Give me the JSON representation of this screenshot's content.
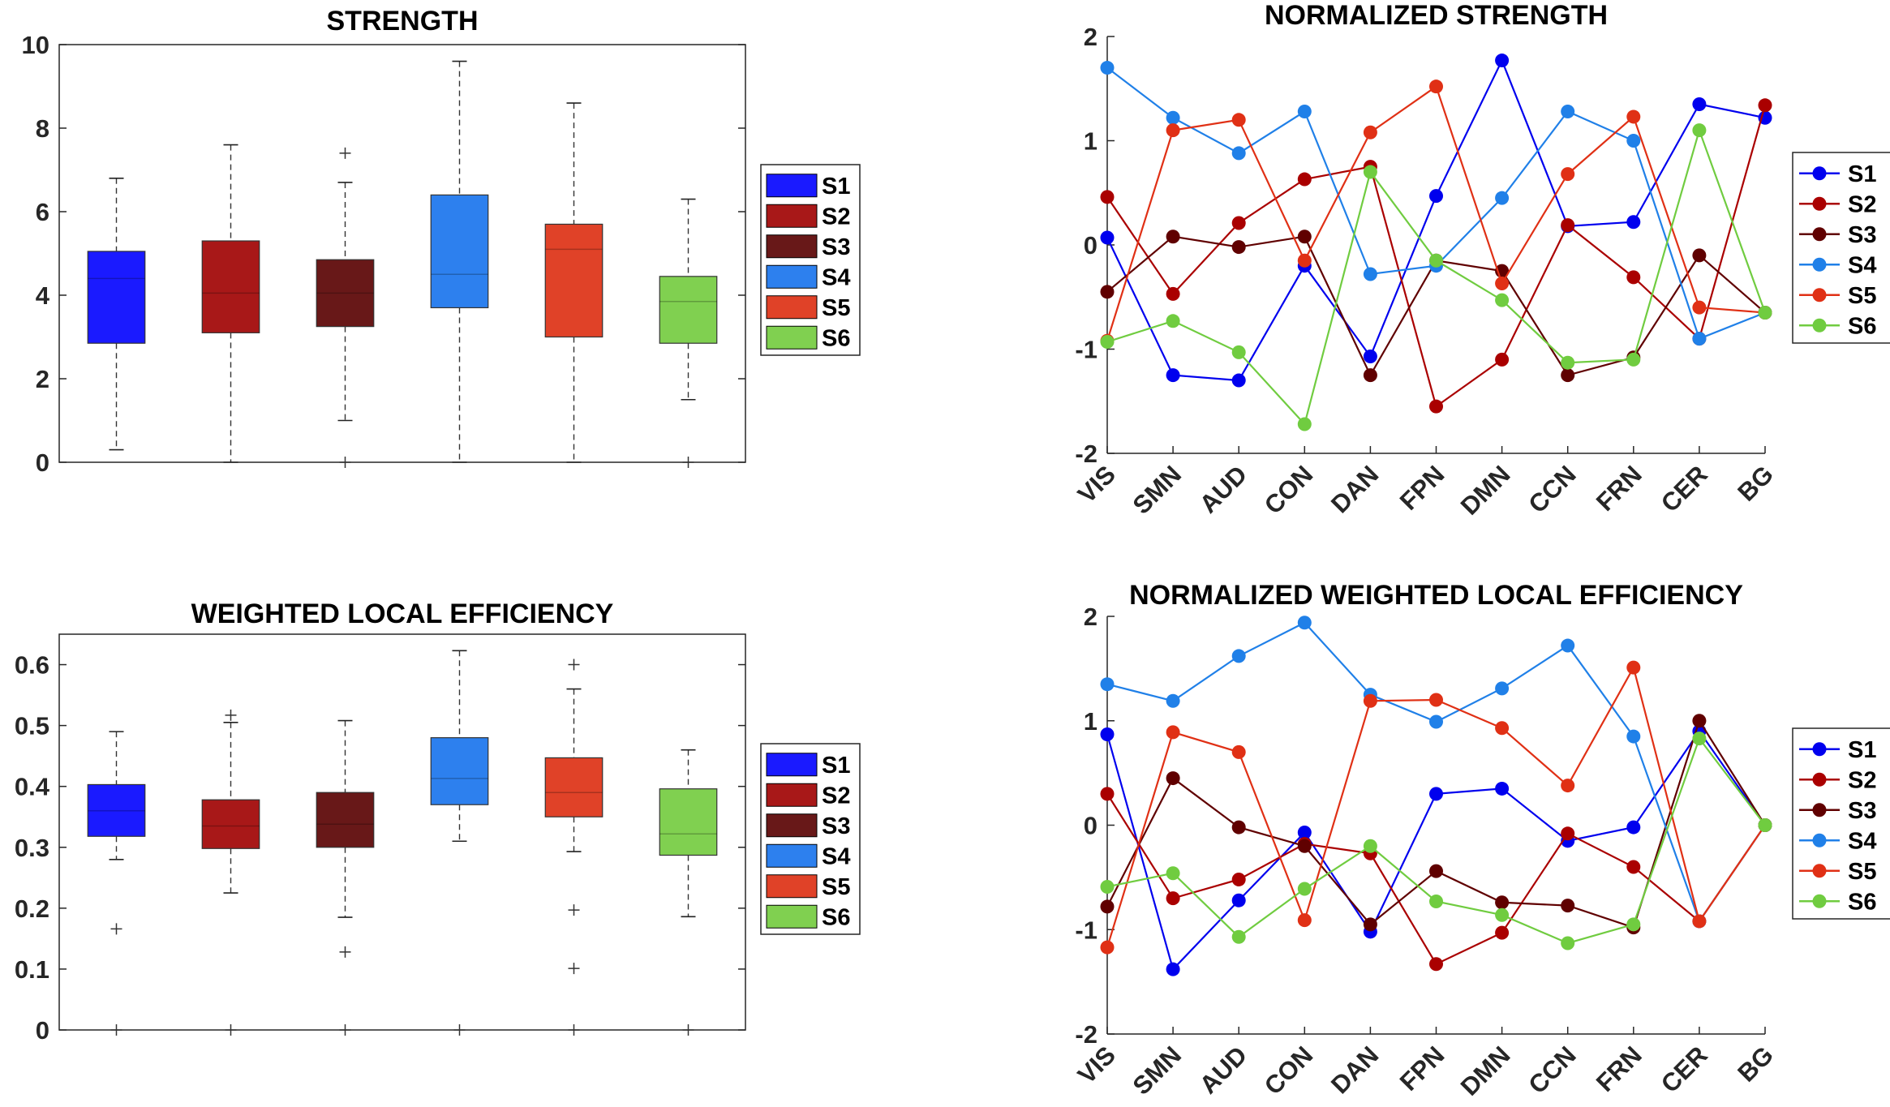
{
  "chart_data": [
    {
      "type": "box",
      "title": "STRENGTH",
      "ylim": [
        0,
        10
      ],
      "yticks": [
        "0",
        "2",
        "4",
        "6",
        "8",
        "10"
      ],
      "grid": false,
      "legend": "right",
      "series": [
        {
          "name": "S1",
          "color": "#1a1aff",
          "whisker_low": 0.3,
          "q1": 2.85,
          "median": 4.4,
          "q3": 5.05,
          "whisker_high": 6.8,
          "outliers": []
        },
        {
          "name": "S2",
          "color": "#a81818",
          "whisker_low": 0.0,
          "q1": 3.1,
          "median": 4.05,
          "q3": 5.3,
          "whisker_high": 7.6,
          "outliers": []
        },
        {
          "name": "S3",
          "color": "#681818",
          "whisker_low": 1.0,
          "q1": 3.25,
          "median": 4.05,
          "q3": 4.85,
          "whisker_high": 6.7,
          "outliers": [
            7.4,
            0.0
          ]
        },
        {
          "name": "S4",
          "color": "#2d80ee",
          "whisker_low": 0.0,
          "q1": 3.7,
          "median": 4.5,
          "q3": 6.4,
          "whisker_high": 9.6,
          "outliers": []
        },
        {
          "name": "S5",
          "color": "#e04228",
          "whisker_low": 0.0,
          "q1": 3.0,
          "median": 5.1,
          "q3": 5.7,
          "whisker_high": 8.6,
          "outliers": []
        },
        {
          "name": "S6",
          "color": "#80d050",
          "whisker_low": 1.5,
          "q1": 2.85,
          "median": 3.85,
          "q3": 4.45,
          "whisker_high": 6.3,
          "outliers": [
            0.0
          ]
        }
      ]
    },
    {
      "type": "line",
      "title": "NORMALIZED STRENGTH",
      "categories": [
        "VIS",
        "SMN",
        "AUD",
        "CON",
        "DAN",
        "FPN",
        "DMN",
        "CCN",
        "FRN",
        "CER",
        "BG"
      ],
      "ylim": [
        -2,
        2
      ],
      "yticks": [
        "-2",
        "-1",
        "0",
        "1",
        "2"
      ],
      "grid": false,
      "legend": "right",
      "series": [
        {
          "name": "S1",
          "color": "#0000ee",
          "values": [
            0.07,
            -1.25,
            -1.3,
            -0.2,
            -1.07,
            0.47,
            1.77,
            0.18,
            0.22,
            1.35,
            1.22
          ]
        },
        {
          "name": "S2",
          "color": "#aa0000",
          "values": [
            0.46,
            -0.47,
            0.21,
            0.63,
            0.75,
            -1.55,
            -1.1,
            0.19,
            -0.31,
            -0.9,
            1.34
          ]
        },
        {
          "name": "S3",
          "color": "#600000",
          "values": [
            -0.45,
            0.08,
            -0.02,
            0.08,
            -1.25,
            -0.15,
            -0.25,
            -1.25,
            -1.08,
            -0.1,
            -0.65
          ]
        },
        {
          "name": "S4",
          "color": "#2080e8",
          "values": [
            1.7,
            1.22,
            0.88,
            1.28,
            -0.28,
            -0.2,
            0.45,
            1.28,
            1.0,
            -0.9,
            -0.65
          ]
        },
        {
          "name": "S5",
          "color": "#e03015",
          "values": [
            -0.92,
            1.1,
            1.2,
            -0.15,
            1.08,
            1.52,
            -0.37,
            0.68,
            1.23,
            -0.6,
            -0.65
          ]
        },
        {
          "name": "S6",
          "color": "#70cc40",
          "values": [
            -0.93,
            -0.73,
            -1.03,
            -1.72,
            0.7,
            -0.15,
            -0.53,
            -1.13,
            -1.1,
            1.1,
            -0.65
          ]
        }
      ]
    },
    {
      "type": "box",
      "title": "WEIGHTED LOCAL EFFICIENCY",
      "ylim": [
        0,
        0.65
      ],
      "yticks": [
        "0",
        "0.1",
        "0.2",
        "0.3",
        "0.4",
        "0.5",
        "0.6"
      ],
      "grid": false,
      "legend": "right",
      "series": [
        {
          "name": "S1",
          "color": "#1a1aff",
          "whisker_low": 0.28,
          "q1": 0.318,
          "median": 0.36,
          "q3": 0.403,
          "whisker_high": 0.49,
          "outliers": [
            0.166,
            0.0
          ]
        },
        {
          "name": "S2",
          "color": "#a81818",
          "whisker_low": 0.225,
          "q1": 0.298,
          "median": 0.335,
          "q3": 0.378,
          "whisker_high": 0.505,
          "outliers": [
            0.517,
            0.0
          ]
        },
        {
          "name": "S3",
          "color": "#681818",
          "whisker_low": 0.185,
          "q1": 0.3,
          "median": 0.338,
          "q3": 0.39,
          "whisker_high": 0.508,
          "outliers": [
            0.128,
            0.0
          ]
        },
        {
          "name": "S4",
          "color": "#2d80ee",
          "whisker_low": 0.31,
          "q1": 0.37,
          "median": 0.413,
          "q3": 0.48,
          "whisker_high": 0.623,
          "outliers": [
            0.0
          ]
        },
        {
          "name": "S5",
          "color": "#e04228",
          "whisker_low": 0.293,
          "q1": 0.35,
          "median": 0.39,
          "q3": 0.447,
          "whisker_high": 0.56,
          "outliers": [
            0.6,
            0.197,
            0.101,
            0.0
          ]
        },
        {
          "name": "S6",
          "color": "#80d050",
          "whisker_low": 0.186,
          "q1": 0.287,
          "median": 0.322,
          "q3": 0.396,
          "whisker_high": 0.46,
          "outliers": [
            0.0
          ]
        }
      ]
    },
    {
      "type": "line",
      "title": "NORMALIZED WEIGHTED LOCAL EFFICIENCY",
      "categories": [
        "VIS",
        "SMN",
        "AUD",
        "CON",
        "DAN",
        "FPN",
        "DMN",
        "CCN",
        "FRN",
        "CER",
        "BG"
      ],
      "ylim": [
        -2,
        2
      ],
      "yticks": [
        "-2",
        "-1",
        "0",
        "1",
        "2"
      ],
      "grid": false,
      "legend": "right",
      "series": [
        {
          "name": "S1",
          "color": "#0000ee",
          "values": [
            0.87,
            -1.38,
            -0.72,
            -0.07,
            -1.02,
            0.3,
            0.35,
            -0.15,
            -0.02,
            0.9,
            0.0
          ]
        },
        {
          "name": "S2",
          "color": "#aa0000",
          "values": [
            0.3,
            -0.7,
            -0.52,
            -0.18,
            -0.27,
            -1.33,
            -1.03,
            -0.08,
            -0.4,
            -0.92,
            0.0
          ]
        },
        {
          "name": "S3",
          "color": "#600000",
          "values": [
            -0.78,
            0.45,
            -0.02,
            -0.2,
            -0.95,
            -0.44,
            -0.74,
            -0.77,
            -0.98,
            1.0,
            0.0
          ]
        },
        {
          "name": "S4",
          "color": "#2080e8",
          "values": [
            1.35,
            1.19,
            1.62,
            1.94,
            1.25,
            0.99,
            1.31,
            1.72,
            0.85,
            -0.92,
            0.0
          ]
        },
        {
          "name": "S5",
          "color": "#e03015",
          "values": [
            -1.17,
            0.89,
            0.7,
            -0.91,
            1.19,
            1.2,
            0.93,
            0.38,
            1.51,
            -0.92,
            0.0
          ]
        },
        {
          "name": "S6",
          "color": "#70cc40",
          "values": [
            -0.59,
            -0.46,
            -1.07,
            -0.61,
            -0.2,
            -0.73,
            -0.86,
            -1.13,
            -0.95,
            0.83,
            0.0
          ]
        }
      ]
    }
  ]
}
